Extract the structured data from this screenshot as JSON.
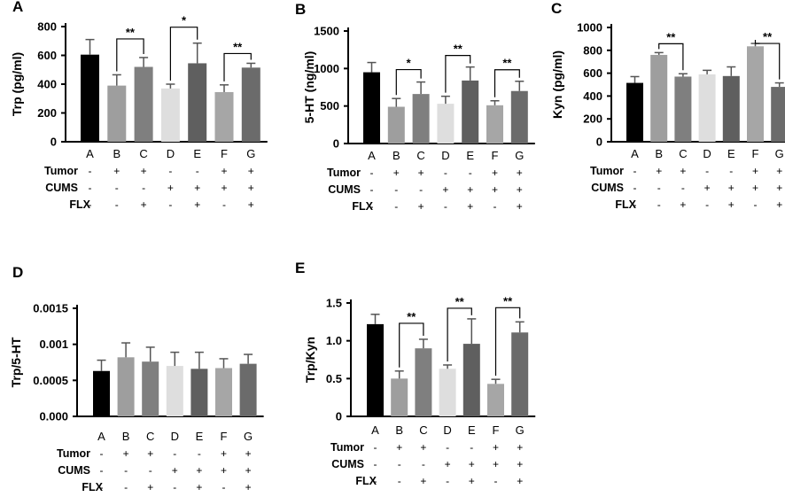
{
  "signs": {
    "plus": "+",
    "minus": "-"
  },
  "colors": {
    "bar_fills": [
      "#000000",
      "#9e9e9e",
      "#7f7f7f",
      "#dedede",
      "#5f5f5f",
      "#a6a6a6",
      "#6b6b6b"
    ],
    "axis": "#000000",
    "error_bar": "#555555"
  },
  "conditions": [
    {
      "label": "Tumor",
      "values": [
        "-",
        "+",
        "+",
        "-",
        "-",
        "+",
        "+"
      ]
    },
    {
      "label": "CUMS",
      "values": [
        "-",
        "-",
        "-",
        "+",
        "+",
        "+",
        "+"
      ]
    },
    {
      "label": "FLX",
      "values": [
        "-",
        "-",
        "+",
        "-",
        "+",
        "-",
        "+"
      ]
    }
  ],
  "chart_data": [
    {
      "panel": "A",
      "type": "bar",
      "ylabel": "Trp (pg/ml)",
      "categories": [
        "A",
        "B",
        "C",
        "D",
        "E",
        "F",
        "G"
      ],
      "values": [
        605,
        390,
        520,
        370,
        545,
        345,
        515
      ],
      "errors": [
        105,
        75,
        65,
        30,
        140,
        50,
        30
      ],
      "ylim": [
        0,
        800
      ],
      "yticks": [
        0,
        200,
        400,
        600,
        800
      ],
      "ytick_labels": [
        "0",
        "200",
        "400",
        "600",
        "800"
      ],
      "significance": [
        {
          "from": 1,
          "to": 2,
          "label": "**"
        },
        {
          "from": 3,
          "to": 4,
          "label": "*"
        },
        {
          "from": 5,
          "to": 6,
          "label": "**"
        }
      ]
    },
    {
      "panel": "B",
      "type": "bar",
      "ylabel": "5-HT (ng/ml)",
      "categories": [
        "A",
        "B",
        "C",
        "D",
        "E",
        "F",
        "G"
      ],
      "values": [
        950,
        490,
        660,
        530,
        840,
        510,
        700
      ],
      "errors": [
        130,
        110,
        160,
        100,
        180,
        60,
        130
      ],
      "ylim": [
        0,
        1500
      ],
      "yticks": [
        0,
        500,
        1000,
        1500
      ],
      "ytick_labels": [
        "0",
        "500",
        "1000",
        "1500"
      ],
      "significance": [
        {
          "from": 1,
          "to": 2,
          "label": "*"
        },
        {
          "from": 3,
          "to": 4,
          "label": "**"
        },
        {
          "from": 5,
          "to": 6,
          "label": "**"
        }
      ]
    },
    {
      "panel": "C",
      "type": "bar",
      "ylabel": "Kyn (pg/ml)",
      "categories": [
        "A",
        "B",
        "C",
        "D",
        "E",
        "F",
        "G"
      ],
      "values": [
        515,
        760,
        570,
        590,
        575,
        835,
        480
      ],
      "errors": [
        55,
        20,
        25,
        35,
        80,
        25,
        35
      ],
      "ylim": [
        0,
        1000
      ],
      "yticks": [
        0,
        200,
        400,
        600,
        800,
        1000
      ],
      "ytick_labels": [
        "0",
        "200",
        "400",
        "600",
        "800",
        "1000"
      ],
      "significance": [
        {
          "from": 1,
          "to": 2,
          "label": "**"
        },
        {
          "from": 5,
          "to": 6,
          "label": "**"
        }
      ]
    },
    {
      "panel": "D",
      "type": "bar",
      "ylabel": "Trp/5-HT",
      "categories": [
        "A",
        "B",
        "C",
        "D",
        "E",
        "F",
        "G"
      ],
      "values": [
        0.00063,
        0.00082,
        0.00076,
        0.0007,
        0.00066,
        0.00067,
        0.00073
      ],
      "errors": [
        0.00015,
        0.0002,
        0.0002,
        0.00019,
        0.00023,
        0.00013,
        0.00013
      ],
      "ylim": [
        0,
        0.0015
      ],
      "yticks": [
        0,
        0.0005,
        0.001,
        0.0015
      ],
      "ytick_labels": [
        "0.000",
        "0.0005",
        "0.001",
        "0.0015"
      ],
      "significance": []
    },
    {
      "panel": "E",
      "type": "bar",
      "ylabel": "Trp/Kyn",
      "categories": [
        "A",
        "B",
        "C",
        "D",
        "E",
        "F",
        "G"
      ],
      "values": [
        1.22,
        0.5,
        0.9,
        0.63,
        0.96,
        0.43,
        1.11
      ],
      "errors": [
        0.13,
        0.1,
        0.12,
        0.05,
        0.33,
        0.06,
        0.14
      ],
      "ylim": [
        0,
        1.5
      ],
      "yticks": [
        0,
        0.5,
        1.0,
        1.5
      ],
      "ytick_labels": [
        "0",
        "0.5",
        "1.0",
        "1.5"
      ],
      "significance": [
        {
          "from": 1,
          "to": 2,
          "label": "**"
        },
        {
          "from": 3,
          "to": 4,
          "label": "**"
        },
        {
          "from": 5,
          "to": 6,
          "label": "**"
        }
      ]
    }
  ]
}
